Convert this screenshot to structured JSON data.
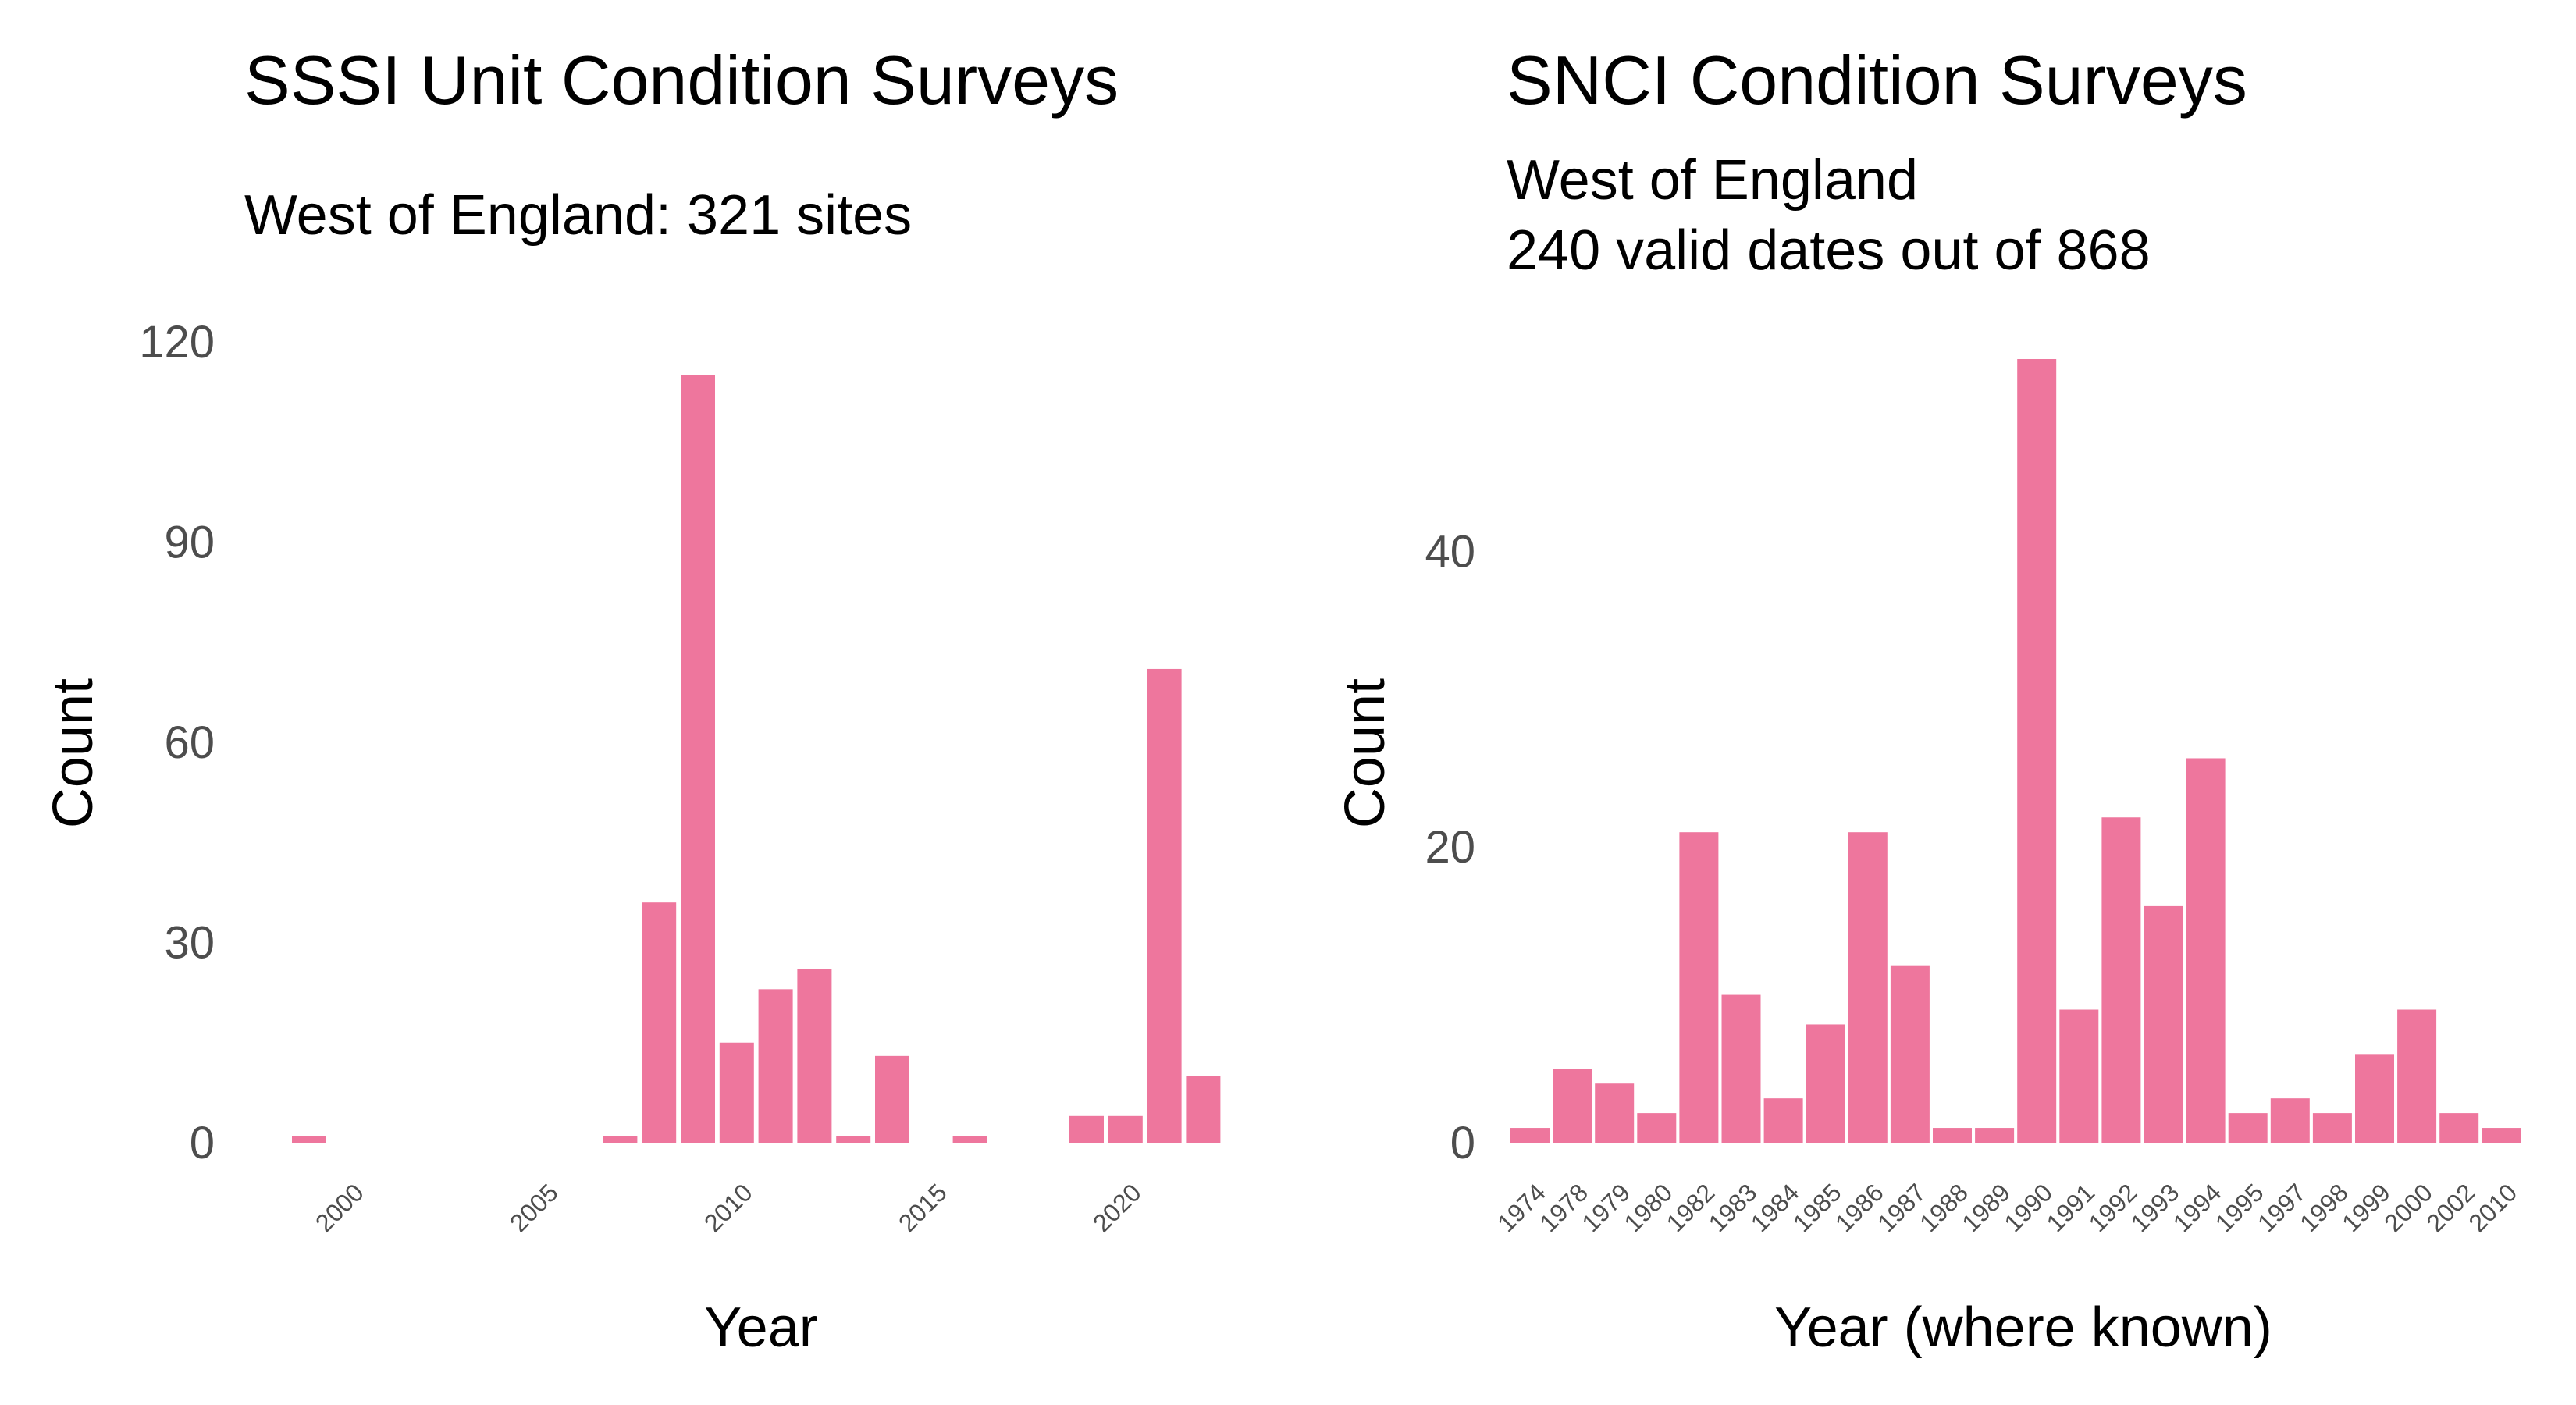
{
  "colors": {
    "bar": "#ee769d",
    "tick_text": "#4d4d4d",
    "text": "#000000"
  },
  "chart_data": [
    {
      "type": "bar",
      "title": "SSSI Unit Condition Surveys",
      "subtitle": [
        "West of England: 321 sites"
      ],
      "xlabel": "Year",
      "ylabel": "Count",
      "ylim": [
        0,
        120
      ],
      "yticks": [
        "0",
        "30",
        "60",
        "90",
        "120"
      ],
      "xticks": [
        "2000",
        "2005",
        "2010",
        "2015",
        "2020"
      ],
      "x": [
        1999,
        2007,
        2008,
        2009,
        2010,
        2011,
        2012,
        2013,
        2014,
        2016,
        2019,
        2020,
        2021,
        2022
      ],
      "values": [
        1,
        1,
        36,
        115,
        15,
        23,
        26,
        1,
        13,
        1,
        4,
        4,
        71,
        10
      ],
      "grid": false
    },
    {
      "type": "bar",
      "title": "SNCI Condition Surveys",
      "subtitle": [
        "West of England",
        "240 valid dates out of 868"
      ],
      "xlabel": "Year (where known)",
      "ylabel": "Count",
      "ylim": [
        0,
        53
      ],
      "yticks": [
        "0",
        "20",
        "40"
      ],
      "categories": [
        "1974",
        "1978",
        "1979",
        "1980",
        "1982",
        "1983",
        "1984",
        "1985",
        "1986",
        "1987",
        "1988",
        "1989",
        "1990",
        "1991",
        "1992",
        "1993",
        "1994",
        "1995",
        "1997",
        "1998",
        "1999",
        "2000",
        "2002",
        "2010"
      ],
      "values": [
        1,
        5,
        4,
        2,
        21,
        10,
        3,
        8,
        21,
        12,
        1,
        1,
        53,
        9,
        22,
        16,
        26,
        2,
        3,
        2,
        6,
        9,
        2,
        1
      ],
      "grid": false
    }
  ]
}
